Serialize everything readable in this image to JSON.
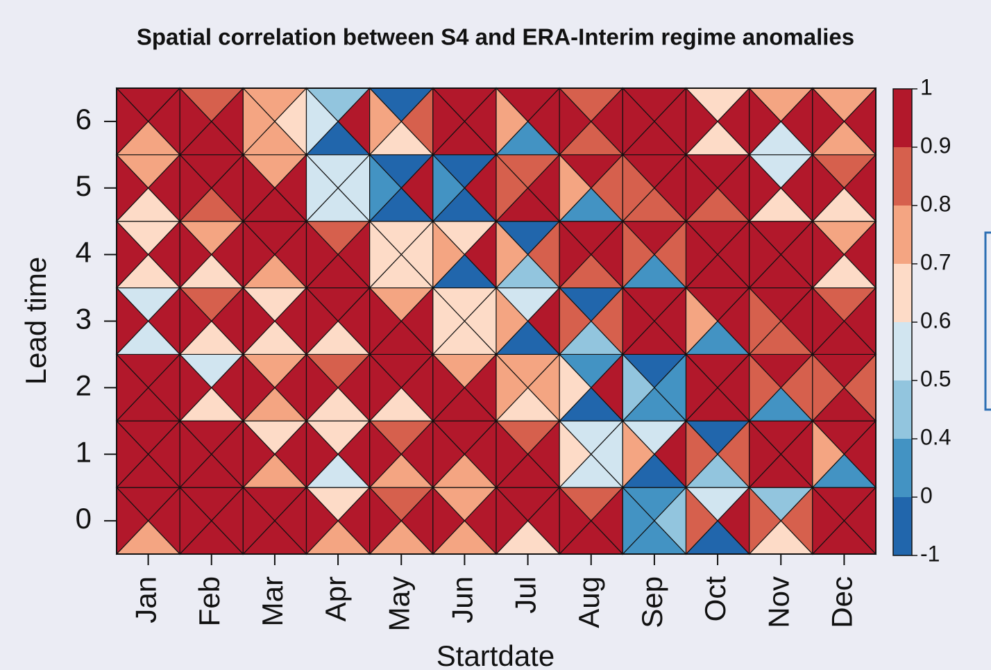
{
  "chart_data": {
    "type": "triangle-heatmap",
    "title": "Spatial correlation between S4 and ERA-Interim regime anomalies",
    "xlabel": "Startdate",
    "ylabel": "Lead time",
    "categories": [
      "Jan",
      "Feb",
      "Mar",
      "Apr",
      "May",
      "Jun",
      "Jul",
      "Aug",
      "Sep",
      "Oct",
      "Nov",
      "Dec"
    ],
    "y": [
      0,
      1,
      2,
      3,
      4,
      5,
      6
    ],
    "ylim": [
      -0.5,
      6.5
    ],
    "yticks": [
      0,
      1,
      2,
      3,
      4,
      5,
      6
    ],
    "colorbar": {
      "breaks": [
        -1,
        0,
        0.4,
        0.5,
        0.6,
        0.7,
        0.8,
        0.9,
        1
      ],
      "colors": [
        "#2166ac",
        "#4393c3",
        "#92c5de",
        "#d1e5f0",
        "#fddbc7",
        "#f4a582",
        "#d6604d",
        "#b2182b"
      ]
    },
    "values": [
      [
        [
          0.95,
          0.95,
          0.75,
          0.95
        ],
        [
          0.95,
          0.95,
          0.95,
          0.95
        ],
        [
          0.95,
          0.95,
          0.95,
          0.95
        ],
        [
          0.65,
          0.95,
          0.75,
          0.95
        ],
        [
          0.85,
          0.95,
          0.75,
          0.95
        ],
        [
          0.75,
          0.95,
          0.75,
          0.95
        ],
        [
          0.95,
          0.95,
          0.65,
          0.95
        ],
        [
          0.85,
          0.95,
          0.95,
          0.95
        ],
        [
          0.2,
          0.45,
          0.2,
          0.2
        ],
        [
          0.55,
          0.95,
          -0.5,
          0.85
        ],
        [
          0.45,
          0.85,
          0.65,
          0.85
        ],
        [
          0.95,
          0.95,
          0.95,
          0.95
        ]
      ],
      [
        [
          0.95,
          0.95,
          0.95,
          0.95
        ],
        [
          0.95,
          0.95,
          0.95,
          0.95
        ],
        [
          0.65,
          0.95,
          0.75,
          0.95
        ],
        [
          0.65,
          0.95,
          0.55,
          0.95
        ],
        [
          0.85,
          0.95,
          0.75,
          0.95
        ],
        [
          0.95,
          0.95,
          0.75,
          0.95
        ],
        [
          0.85,
          0.95,
          0.95,
          0.95
        ],
        [
          0.55,
          0.55,
          0.55,
          0.65
        ],
        [
          0.55,
          0.95,
          -0.5,
          0.75
        ],
        [
          -0.5,
          0.85,
          0.45,
          0.85
        ],
        [
          0.95,
          0.95,
          0.95,
          0.95
        ],
        [
          0.95,
          0.95,
          0.2,
          0.75
        ]
      ],
      [
        [
          0.95,
          0.95,
          0.95,
          0.95
        ],
        [
          0.55,
          0.95,
          0.65,
          0.95
        ],
        [
          0.75,
          0.95,
          0.75,
          0.95
        ],
        [
          0.85,
          0.95,
          0.65,
          0.95
        ],
        [
          0.95,
          0.95,
          0.65,
          0.95
        ],
        [
          0.75,
          0.95,
          0.95,
          0.95
        ],
        [
          0.75,
          0.75,
          0.65,
          0.75
        ],
        [
          0.2,
          0.95,
          -0.5,
          0.65
        ],
        [
          -0.5,
          0.2,
          0.2,
          0.45
        ],
        [
          0.95,
          0.95,
          0.95,
          0.95
        ],
        [
          0.95,
          0.85,
          0.2,
          0.85
        ],
        [
          0.95,
          0.85,
          0.95,
          0.85
        ]
      ],
      [
        [
          0.55,
          0.95,
          0.55,
          0.95
        ],
        [
          0.85,
          0.95,
          0.65,
          0.95
        ],
        [
          0.65,
          0.95,
          0.65,
          0.95
        ],
        [
          0.95,
          0.95,
          0.65,
          0.95
        ],
        [
          0.75,
          0.95,
          0.95,
          0.95
        ],
        [
          0.65,
          0.65,
          0.65,
          0.65
        ],
        [
          0.55,
          0.95,
          -0.5,
          0.75
        ],
        [
          -0.5,
          0.85,
          0.45,
          0.85
        ],
        [
          0.95,
          0.95,
          0.95,
          0.95
        ],
        [
          0.95,
          0.95,
          0.2,
          0.75
        ],
        [
          0.95,
          0.95,
          0.85,
          0.85
        ],
        [
          0.85,
          0.95,
          0.95,
          0.95
        ]
      ],
      [
        [
          0.65,
          0.95,
          0.65,
          0.95
        ],
        [
          0.75,
          0.95,
          0.65,
          0.95
        ],
        [
          0.95,
          0.95,
          0.75,
          0.95
        ],
        [
          0.85,
          0.95,
          0.95,
          0.95
        ],
        [
          0.65,
          0.65,
          0.65,
          0.65
        ],
        [
          0.65,
          0.95,
          -0.5,
          0.75
        ],
        [
          -0.5,
          0.85,
          0.45,
          0.75
        ],
        [
          0.95,
          0.95,
          0.85,
          0.95
        ],
        [
          0.95,
          0.85,
          0.2,
          0.85
        ],
        [
          0.95,
          0.95,
          0.95,
          0.95
        ],
        [
          0.95,
          0.95,
          0.95,
          0.95
        ],
        [
          0.75,
          0.95,
          0.65,
          0.95
        ]
      ],
      [
        [
          0.75,
          0.95,
          0.65,
          0.95
        ],
        [
          0.95,
          0.95,
          0.85,
          0.95
        ],
        [
          0.75,
          0.95,
          0.95,
          0.95
        ],
        [
          0.55,
          0.55,
          0.55,
          0.55
        ],
        [
          -0.5,
          0.95,
          -0.5,
          0.2
        ],
        [
          -0.5,
          0.95,
          -0.5,
          0.2
        ],
        [
          0.85,
          0.95,
          0.95,
          0.85
        ],
        [
          0.95,
          0.85,
          0.2,
          0.75
        ],
        [
          0.95,
          0.95,
          0.85,
          0.85
        ],
        [
          0.95,
          0.95,
          0.85,
          0.95
        ],
        [
          0.55,
          0.95,
          0.65,
          0.95
        ],
        [
          0.85,
          0.95,
          0.65,
          0.95
        ]
      ],
      [
        [
          0.95,
          0.95,
          0.75,
          0.95
        ],
        [
          0.85,
          0.95,
          0.95,
          0.95
        ],
        [
          0.75,
          0.65,
          0.75,
          0.75
        ],
        [
          0.45,
          0.95,
          -0.5,
          0.55
        ],
        [
          -0.5,
          0.85,
          0.65,
          0.75
        ],
        [
          0.95,
          0.95,
          0.95,
          0.95
        ],
        [
          0.95,
          0.95,
          0.2,
          0.75
        ],
        [
          0.85,
          0.95,
          0.85,
          0.95
        ],
        [
          0.95,
          0.95,
          0.95,
          0.95
        ],
        [
          0.65,
          0.95,
          0.65,
          0.95
        ],
        [
          0.75,
          0.95,
          0.55,
          0.95
        ],
        [
          0.75,
          0.95,
          0.75,
          0.95
        ]
      ]
    ]
  }
}
